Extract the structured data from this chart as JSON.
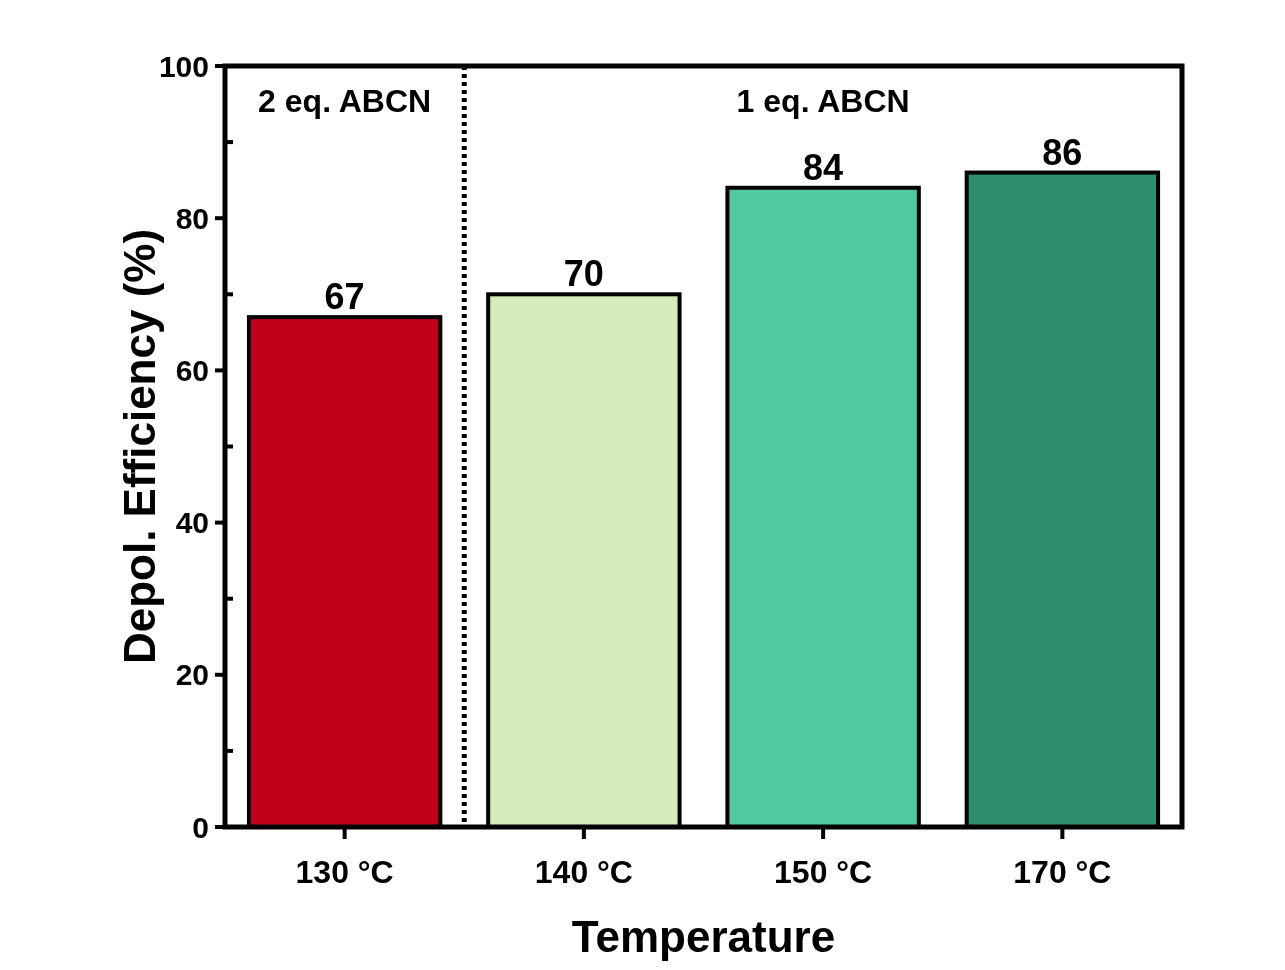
{
  "chart_data": {
    "type": "bar",
    "xlabel": "Temperature",
    "ylabel": "Depol. Efficiency (%)",
    "categories": [
      "130 °C",
      "140 °C",
      "150 °C",
      "170 °C"
    ],
    "values": [
      67,
      70,
      84,
      86
    ],
    "colors": [
      "#c0001a",
      "#d5ebbb",
      "#50c8a0",
      "#2e8d6c"
    ],
    "data_labels": true,
    "ylim": [
      0,
      100
    ],
    "yticks": [
      0,
      {
        "value": 10,
        "label": null
      },
      20,
      {
        "value": 30,
        "label": null
      },
      40,
      {
        "value": 50,
        "label": null
      },
      60,
      {
        "value": 70,
        "label": null
      },
      80,
      {
        "value": 90,
        "label": null
      },
      100
    ],
    "annotations": [
      "2 eq. ABCN",
      "1 eq. ABCN"
    ],
    "grid": false
  }
}
